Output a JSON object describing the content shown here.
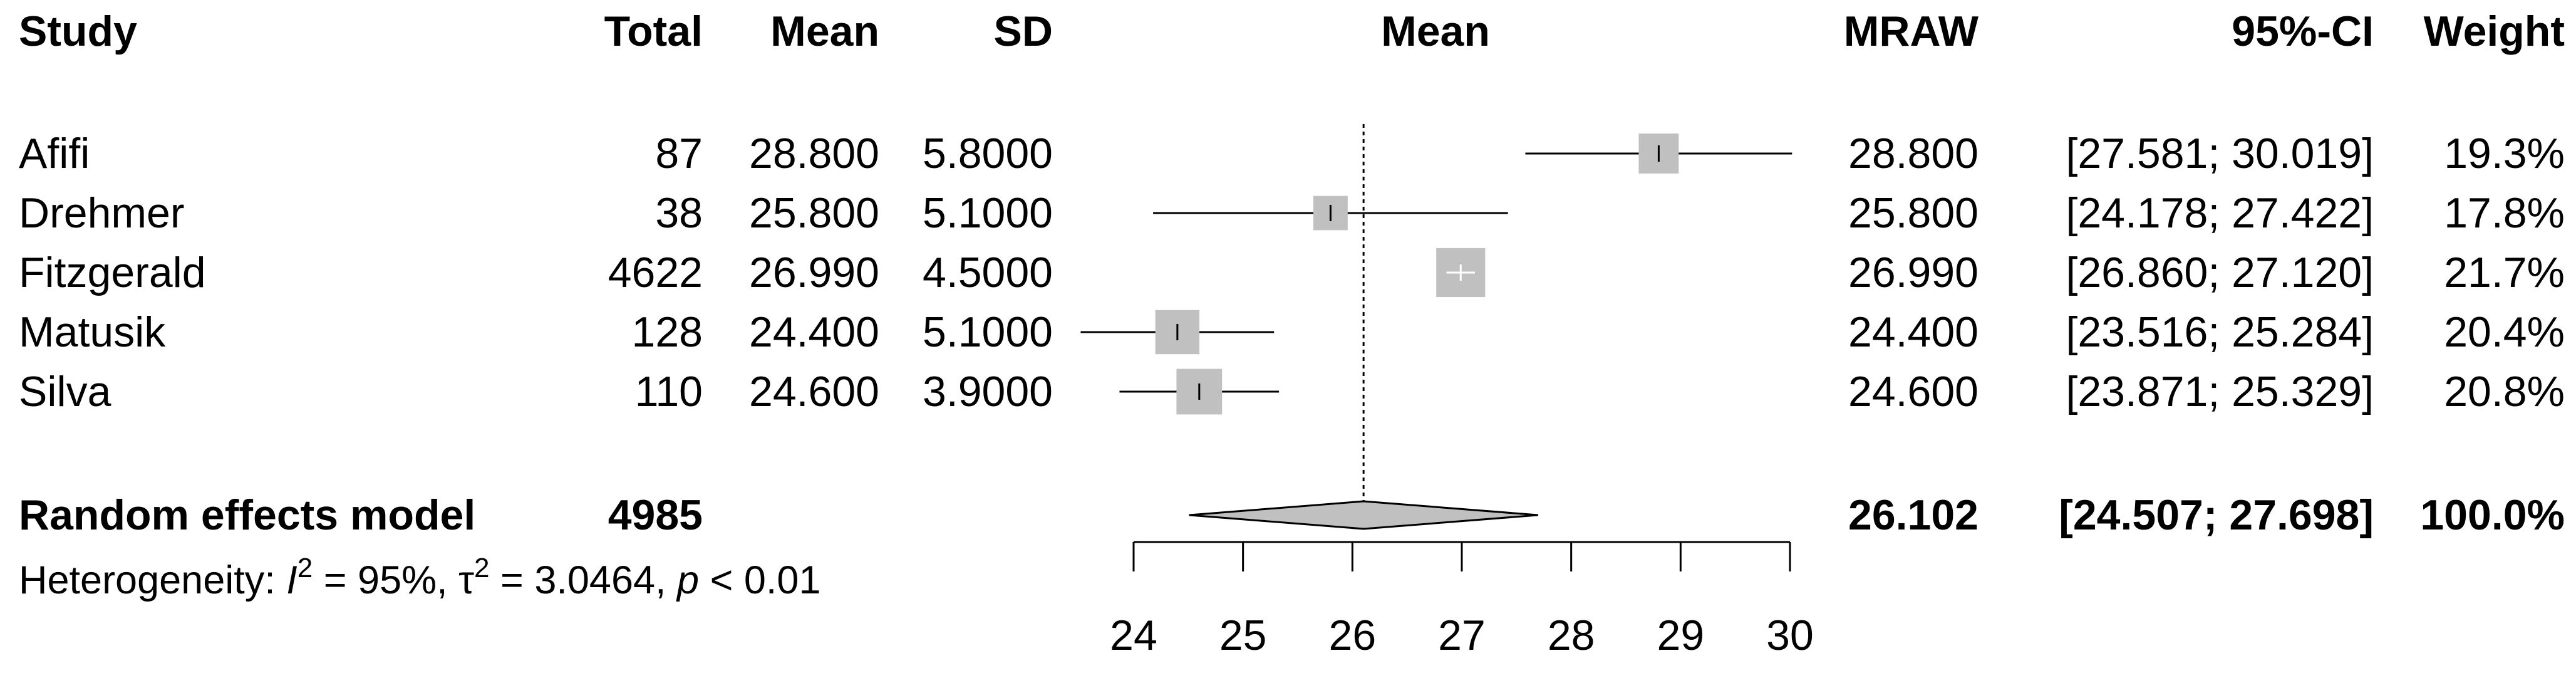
{
  "chart_data": {
    "type": "forest",
    "headers": {
      "study": "Study",
      "total": "Total",
      "mean": "Mean",
      "sd": "SD",
      "plot": "Mean",
      "mraw": "MRAW",
      "ci": "95%-CI",
      "weight": "Weight"
    },
    "studies": [
      {
        "name": "Afifi",
        "total": "87",
        "mean": "28.800",
        "sd": "5.8000",
        "mraw": "28.800",
        "ci": "[27.581; 30.019]",
        "weight": "19.3%",
        "estimate": 28.8,
        "lower": 27.581,
        "upper": 30.019,
        "weight_value": 19.3
      },
      {
        "name": "Drehmer",
        "total": "38",
        "mean": "25.800",
        "sd": "5.1000",
        "mraw": "25.800",
        "ci": "[24.178; 27.422]",
        "weight": "17.8%",
        "estimate": 25.8,
        "lower": 24.178,
        "upper": 27.422,
        "weight_value": 17.8
      },
      {
        "name": "Fitzgerald",
        "total": "4622",
        "mean": "26.990",
        "sd": "4.5000",
        "mraw": "26.990",
        "ci": "[26.860; 27.120]",
        "weight": "21.7%",
        "estimate": 26.99,
        "lower": 26.86,
        "upper": 27.12,
        "weight_value": 21.7
      },
      {
        "name": "Matusik",
        "total": "128",
        "mean": "24.400",
        "sd": "5.1000",
        "mraw": "24.400",
        "ci": "[23.516; 25.284]",
        "weight": "20.4%",
        "estimate": 24.4,
        "lower": 23.516,
        "upper": 25.284,
        "weight_value": 20.4
      },
      {
        "name": "Silva",
        "total": "110",
        "mean": "24.600",
        "sd": "3.9000",
        "mraw": "24.600",
        "ci": "[23.871; 25.329]",
        "weight": "20.8%",
        "estimate": 24.6,
        "lower": 23.871,
        "upper": 25.329,
        "weight_value": 20.8
      }
    ],
    "pooled": {
      "name": "Random effects model",
      "total": "4985",
      "mraw": "26.102",
      "ci": "[24.507; 27.698]",
      "weight": "100.0%",
      "estimate": 26.102,
      "lower": 24.507,
      "upper": 27.698
    },
    "heterogeneity": {
      "prefix": "Heterogeneity: ",
      "i2_symbol": "I",
      "i2_exp": "2",
      "i2_text": " = 95%, ",
      "tau_symbol": "τ",
      "tau_exp": "2",
      "tau_text": " = 3.0464, ",
      "p_symbol": "p",
      "p_text": " < 0.01"
    },
    "x_axis": {
      "range": [
        24,
        30
      ],
      "ticks": [
        24,
        25,
        26,
        27,
        28,
        29,
        30
      ],
      "tick_labels": [
        "24",
        "25",
        "26",
        "27",
        "28",
        "29",
        "30"
      ]
    },
    "reference_value": 26.102
  }
}
